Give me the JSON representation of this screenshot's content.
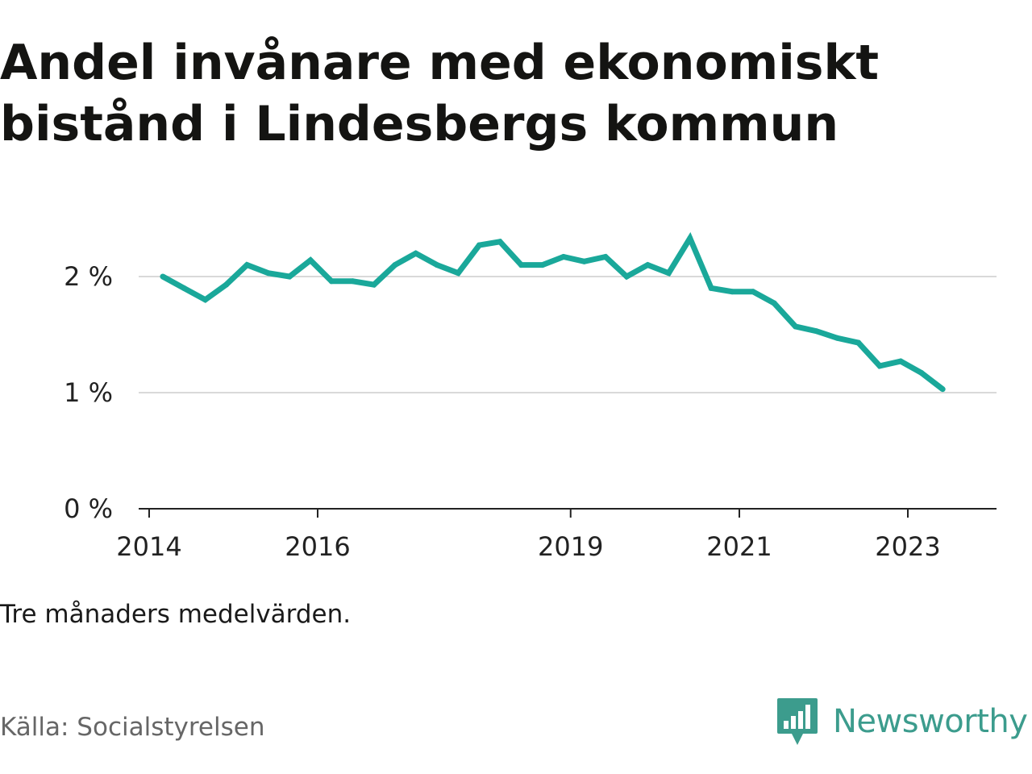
{
  "title": "Andel invånare med ekonomiskt bistånd i Lindesbergs kommun",
  "subtitle": "Tre månaders medelvärden.",
  "source": "Källa: Socialstyrelsen",
  "brand": "Newsworthy",
  "colors": {
    "line": "#1aa89a",
    "grid": "#d9d9d9",
    "axis": "#222222",
    "brand": "#3c9c8d"
  },
  "chart_data": {
    "type": "line",
    "title": "Andel invånare med ekonomiskt bistånd i Lindesbergs kommun",
    "xlabel": "",
    "ylabel": "",
    "ylim": [
      0,
      2.5
    ],
    "yticks": [
      {
        "value": 0,
        "label": "0 %"
      },
      {
        "value": 1,
        "label": "1 %"
      },
      {
        "value": 2,
        "label": "2 %"
      }
    ],
    "xlim": [
      "2014-01-01",
      "2024-06-01"
    ],
    "xticks": [
      {
        "date": "2014-01-01",
        "label": "2014"
      },
      {
        "date": "2016-01-01",
        "label": "2016"
      },
      {
        "date": "2019-01-01",
        "label": "2019"
      },
      {
        "date": "2021-01-01",
        "label": "2021"
      },
      {
        "date": "2023-01-01",
        "label": "2023"
      }
    ],
    "grid": true,
    "legend": "none",
    "series": [
      {
        "points": [
          {
            "date": "2014-03-01",
            "value": 2.0
          },
          {
            "date": "2014-06-01",
            "value": 1.9
          },
          {
            "date": "2014-09-01",
            "value": 1.8
          },
          {
            "date": "2014-12-01",
            "value": 1.93
          },
          {
            "date": "2015-03-01",
            "value": 2.1
          },
          {
            "date": "2015-06-01",
            "value": 2.03
          },
          {
            "date": "2015-09-01",
            "value": 2.0
          },
          {
            "date": "2015-12-01",
            "value": 2.14
          },
          {
            "date": "2016-03-01",
            "value": 1.96
          },
          {
            "date": "2016-06-01",
            "value": 1.96
          },
          {
            "date": "2016-09-01",
            "value": 1.93
          },
          {
            "date": "2016-12-01",
            "value": 2.1
          },
          {
            "date": "2017-03-01",
            "value": 2.2
          },
          {
            "date": "2017-06-01",
            "value": 2.1
          },
          {
            "date": "2017-09-01",
            "value": 2.03
          },
          {
            "date": "2017-12-01",
            "value": 2.27
          },
          {
            "date": "2018-03-01",
            "value": 2.3
          },
          {
            "date": "2018-06-01",
            "value": 2.1
          },
          {
            "date": "2018-09-01",
            "value": 2.1
          },
          {
            "date": "2018-12-01",
            "value": 2.17
          },
          {
            "date": "2019-03-01",
            "value": 2.13
          },
          {
            "date": "2019-06-01",
            "value": 2.17
          },
          {
            "date": "2019-09-01",
            "value": 2.0
          },
          {
            "date": "2019-12-01",
            "value": 2.1
          },
          {
            "date": "2020-03-01",
            "value": 2.03
          },
          {
            "date": "2020-06-01",
            "value": 2.33
          },
          {
            "date": "2020-09-01",
            "value": 1.9
          },
          {
            "date": "2020-12-01",
            "value": 1.87
          },
          {
            "date": "2021-03-01",
            "value": 1.87
          },
          {
            "date": "2021-06-01",
            "value": 1.77
          },
          {
            "date": "2021-09-01",
            "value": 1.57
          },
          {
            "date": "2021-12-01",
            "value": 1.53
          },
          {
            "date": "2022-03-01",
            "value": 1.47
          },
          {
            "date": "2022-06-01",
            "value": 1.43
          },
          {
            "date": "2022-09-01",
            "value": 1.23
          },
          {
            "date": "2022-12-01",
            "value": 1.27
          },
          {
            "date": "2023-03-01",
            "value": 1.17
          },
          {
            "date": "2023-06-01",
            "value": 1.03
          }
        ]
      }
    ]
  }
}
